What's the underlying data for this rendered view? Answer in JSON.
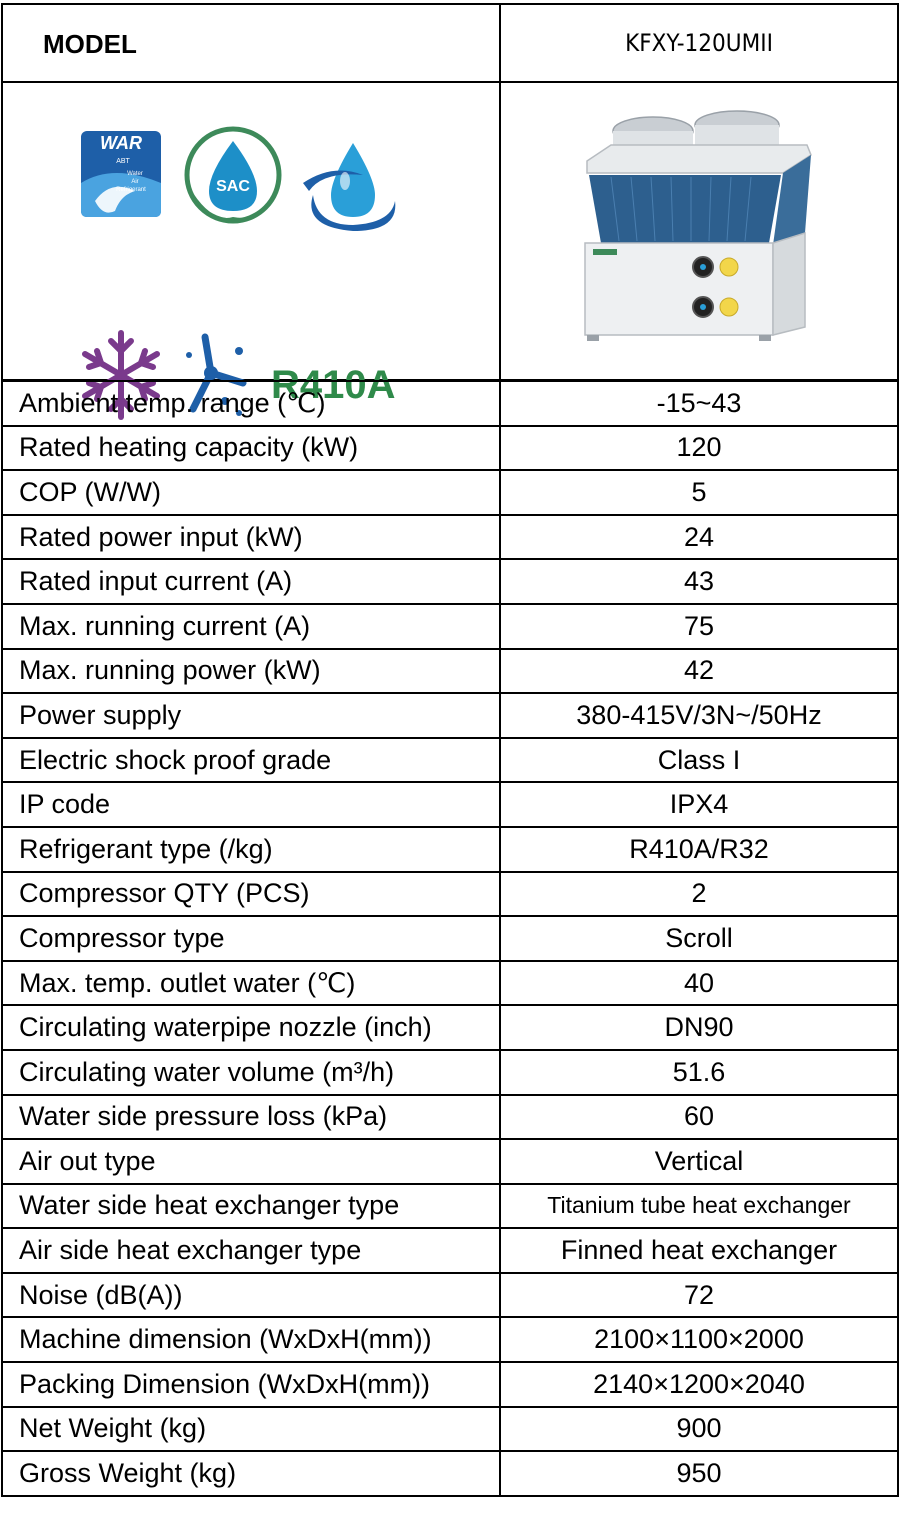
{
  "header": {
    "label": "MODEL",
    "model": "KFXY-120UMII"
  },
  "logos": {
    "war": {
      "title": "WAR",
      "sub1": "ABT",
      "sub2": "Water",
      "sub3": "Air",
      "sub4": "Refrigerant"
    },
    "sac": {
      "title": "SAC"
    },
    "refrigerant": "R410A"
  },
  "specs": [
    {
      "label": "Ambient temp. range (℃)",
      "value": "-15~43"
    },
    {
      "label": "Rated heating capacity (kW)",
      "value": "120"
    },
    {
      "label": "COP (W/W)",
      "value": "5"
    },
    {
      "label": "Rated power input (kW)",
      "value": "24"
    },
    {
      "label": "Rated input current (A)",
      "value": "43"
    },
    {
      "label": "Max. running current (A)",
      "value": "75"
    },
    {
      "label": "Max. running power (kW)",
      "value": "42"
    },
    {
      "label": "Power supply",
      "value": "380-415V/3N~/50Hz"
    },
    {
      "label": "Electric shock proof grade",
      "value": "Class I"
    },
    {
      "label": "IP code",
      "value": "IPX4"
    },
    {
      "label": "Refrigerant type (/kg)",
      "value": "R410A/R32"
    },
    {
      "label": "Compressor QTY (PCS)",
      "value": "2"
    },
    {
      "label": "Compressor type",
      "value": "Scroll"
    },
    {
      "label": "Max. temp. outlet water (℃)",
      "value": "40"
    },
    {
      "label": "Circulating waterpipe nozzle (inch)",
      "value": "DN90"
    },
    {
      "label": "Circulating water volume (m³/h)",
      "value": "51.6"
    },
    {
      "label": "Water side pressure loss (kPa)",
      "value": "60"
    },
    {
      "label": "Air out type",
      "value": "Vertical"
    },
    {
      "label": "Water side heat exchanger type",
      "value": "Titanium tube heat exchanger"
    },
    {
      "label": "Air side heat exchanger type",
      "value": "Finned heat exchanger"
    },
    {
      "label": "Noise (dB(A))",
      "value": "72"
    },
    {
      "label": "Machine dimension (WxDxH(mm))",
      "value": "2100×1100×2000"
    },
    {
      "label": "Packing Dimension (WxDxH(mm))",
      "value": "2140×1200×2040"
    },
    {
      "label": "Net Weight (kg)",
      "value": "900"
    },
    {
      "label": "Gross Weight (kg)",
      "value": "950"
    }
  ],
  "colors": {
    "border": "#000000",
    "war_blue": "#1e5fa8",
    "sac_green": "#3d8a5a",
    "drop_blue": "#2a9fd8",
    "snow_purple": "#7a3a8c",
    "r410a_green": "#2f8a4a",
    "unit_coil": "#2d5f8e"
  }
}
